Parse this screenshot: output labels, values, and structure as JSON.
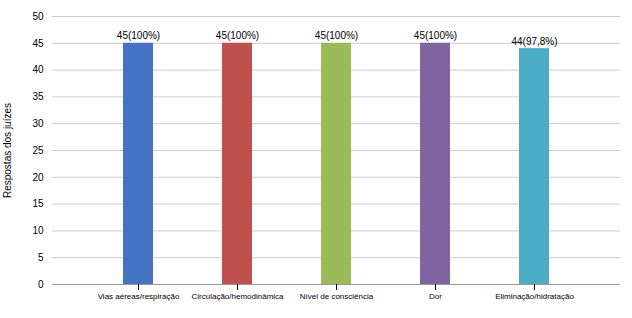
{
  "chart_data": {
    "type": "bar",
    "categories": [
      "Vias aéreas/respiração",
      "Circulação/hemodinâmica",
      "Nível de consciência",
      "Dor",
      "Eliminação/hidratação"
    ],
    "values": [
      45,
      45,
      45,
      45,
      44
    ],
    "value_labels": [
      "45(100%)",
      "45(100%)",
      "45(100%)",
      "45(100%)",
      "44(97,8%)"
    ],
    "colors": [
      "#4472C4",
      "#C0504D",
      "#9BBB59",
      "#8064A2",
      "#4BACC6"
    ],
    "ylabel": "Respostas dos juízes",
    "ylim": [
      0,
      50
    ],
    "yticks": [
      0,
      5,
      10,
      15,
      20,
      25,
      30,
      35,
      40,
      45,
      50
    ],
    "grid": true,
    "data_labels": true
  }
}
